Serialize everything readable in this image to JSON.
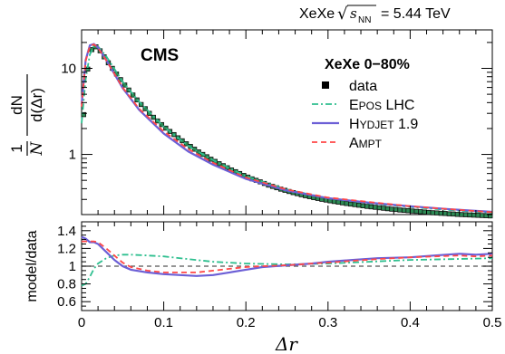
{
  "header": {
    "system": "XeXe",
    "sqrt_symbol": "√",
    "energy_symbol": "s",
    "energy_subscript": "NN",
    "energy_value": "= 5.44 TeV"
  },
  "experiment_label": "CMS",
  "centrality_label": "XeXe 0−80%",
  "chart_data": [
    {
      "type": "line",
      "panel": "top",
      "yscale": "log",
      "xlim": [
        0,
        0.5
      ],
      "ylim": [
        0.2,
        28
      ],
      "yticks": [
        1,
        10
      ],
      "ytick_labels": [
        "1",
        "10"
      ],
      "ylabel": {
        "numerator": "1",
        "denominator_N": "N",
        "fraction2_numerator": "dN",
        "fraction2_denominator": "d(Δr)"
      },
      "legend_position": "right",
      "series": [
        {
          "name": "data",
          "kind": "markers",
          "color": "#000000",
          "x": [
            0.0025,
            0.0075,
            0.0125,
            0.0175,
            0.0225,
            0.0275,
            0.0325,
            0.0375,
            0.0425,
            0.0475,
            0.0525,
            0.0575,
            0.0625,
            0.0675,
            0.0725,
            0.0775,
            0.0825,
            0.0875,
            0.0925,
            0.0975,
            0.1025,
            0.1075,
            0.1125,
            0.1175,
            0.1225,
            0.1275,
            0.1325,
            0.1375,
            0.1425,
            0.1475,
            0.1525,
            0.1575,
            0.1625,
            0.1675,
            0.1725,
            0.1775,
            0.1825,
            0.1875,
            0.1925,
            0.1975,
            0.2025,
            0.2075,
            0.2125,
            0.2175,
            0.2225,
            0.2275,
            0.2325,
            0.2375,
            0.2425,
            0.2475,
            0.2525,
            0.2575,
            0.2625,
            0.2675,
            0.2725,
            0.2775,
            0.2825,
            0.2875,
            0.2925,
            0.2975,
            0.3025,
            0.3075,
            0.3125,
            0.3175,
            0.3225,
            0.3275,
            0.3325,
            0.3375,
            0.3425,
            0.3475,
            0.3525,
            0.3575,
            0.3625,
            0.3675,
            0.3725,
            0.3775,
            0.3825,
            0.3875,
            0.3925,
            0.3975,
            0.4025,
            0.4075,
            0.4125,
            0.4175,
            0.4225,
            0.4275,
            0.4325,
            0.4375,
            0.4425,
            0.4475,
            0.4525,
            0.4575,
            0.4625,
            0.4675,
            0.4725,
            0.4775,
            0.4825,
            0.4875,
            0.4925,
            0.4975
          ],
          "y": [
            2.9,
            9.8,
            16.5,
            17.8,
            16.0,
            13.6,
            11.6,
            10.0,
            8.6,
            7.4,
            6.4,
            5.6,
            4.9,
            4.3,
            3.8,
            3.4,
            3.0,
            2.7,
            2.45,
            2.22,
            2.02,
            1.85,
            1.7,
            1.56,
            1.44,
            1.33,
            1.24,
            1.15,
            1.07,
            1.0,
            0.94,
            0.88,
            0.83,
            0.78,
            0.74,
            0.7,
            0.66,
            0.63,
            0.6,
            0.57,
            0.545,
            0.52,
            0.5,
            0.48,
            0.46,
            0.44,
            0.425,
            0.41,
            0.395,
            0.383,
            0.371,
            0.36,
            0.35,
            0.34,
            0.331,
            0.323,
            0.315,
            0.308,
            0.301,
            0.295,
            0.289,
            0.284,
            0.279,
            0.274,
            0.269,
            0.265,
            0.261,
            0.257,
            0.253,
            0.249,
            0.246,
            0.243,
            0.24,
            0.237,
            0.234,
            0.231,
            0.229,
            0.226,
            0.224,
            0.222,
            0.22,
            0.218,
            0.216,
            0.214,
            0.212,
            0.21,
            0.209,
            0.207,
            0.206,
            0.204,
            0.203,
            0.201,
            0.2,
            0.199,
            0.198,
            0.197,
            0.196,
            0.195,
            0.194,
            0.193
          ]
        },
        {
          "name": "EPOS LHC",
          "display": {
            "initial1": "E",
            "rest1": "POS",
            "suffix": " LHC"
          },
          "kind": "line",
          "dash": "dashdot",
          "color": "#2ebf8f",
          "x": [
            0.0,
            0.005,
            0.01,
            0.015,
            0.02,
            0.03,
            0.05,
            0.07,
            0.1,
            0.13,
            0.16,
            0.2,
            0.25,
            0.3,
            0.35,
            0.4,
            0.45,
            0.5
          ],
          "y": [
            2.3,
            7.5,
            14.5,
            18.2,
            18.0,
            13.8,
            7.0,
            4.1,
            2.1,
            1.25,
            0.86,
            0.56,
            0.39,
            0.31,
            0.27,
            0.245,
            0.225,
            0.21
          ]
        },
        {
          "name": "HYDJET 1.9",
          "display": {
            "initial1": "H",
            "rest1": "YDJET",
            "suffix": " 1.9"
          },
          "kind": "line",
          "dash": "solid",
          "color": "#6c5fd6",
          "x": [
            0.0,
            0.005,
            0.01,
            0.015,
            0.02,
            0.03,
            0.05,
            0.07,
            0.1,
            0.13,
            0.16,
            0.2,
            0.25,
            0.3,
            0.35,
            0.4,
            0.45,
            0.5
          ],
          "y": [
            3.8,
            12.5,
            18.5,
            19.2,
            17.5,
            12.5,
            5.9,
            3.3,
            1.75,
            1.08,
            0.76,
            0.52,
            0.38,
            0.31,
            0.275,
            0.25,
            0.23,
            0.215
          ]
        },
        {
          "name": "AMPT",
          "display": {
            "initial1": "A",
            "rest1": "MPT",
            "suffix": ""
          },
          "kind": "line",
          "dash": "dashed",
          "color": "#ff4747",
          "x": [
            0.0,
            0.005,
            0.01,
            0.015,
            0.02,
            0.03,
            0.05,
            0.07,
            0.1,
            0.13,
            0.16,
            0.2,
            0.25,
            0.3,
            0.35,
            0.4,
            0.45,
            0.5
          ],
          "y": [
            3.6,
            12.2,
            18.2,
            19.0,
            17.3,
            12.4,
            6.0,
            3.4,
            1.85,
            1.15,
            0.8,
            0.54,
            0.39,
            0.315,
            0.28,
            0.25,
            0.23,
            0.213
          ]
        }
      ]
    },
    {
      "type": "line",
      "panel": "bottom",
      "xlim": [
        0,
        0.5
      ],
      "ylim": [
        0.5,
        1.5
      ],
      "xticks": [
        0,
        0.1,
        0.2,
        0.3,
        0.4,
        0.5
      ],
      "xtick_labels": [
        "0",
        "0.1",
        "0.2",
        "0.3",
        "0.4",
        "0.5"
      ],
      "yticks": [
        0.6,
        0.8,
        1.0,
        1.2,
        1.4
      ],
      "ytick_labels": [
        "0.6",
        "0.8",
        "1",
        "1.2",
        "1.4"
      ],
      "xlabel": "Δr",
      "ylabel": "model/data",
      "reference_line": 1.0,
      "series": [
        {
          "name": "EPOS LHC",
          "color": "#2ebf8f",
          "dash": "dashdot",
          "x": [
            0.0,
            0.005,
            0.01,
            0.015,
            0.02,
            0.03,
            0.04,
            0.05,
            0.06,
            0.08,
            0.1,
            0.13,
            0.16,
            0.2,
            0.25,
            0.3,
            0.35,
            0.4,
            0.45,
            0.5
          ],
          "y": [
            0.78,
            0.8,
            0.88,
            0.97,
            1.03,
            1.09,
            1.12,
            1.13,
            1.13,
            1.12,
            1.11,
            1.08,
            1.05,
            1.03,
            1.02,
            1.03,
            1.05,
            1.07,
            1.08,
            1.09
          ]
        },
        {
          "name": "HYDJET 1.9",
          "color": "#6c5fd6",
          "dash": "solid",
          "x": [
            0.0,
            0.005,
            0.01,
            0.015,
            0.02,
            0.03,
            0.04,
            0.05,
            0.06,
            0.08,
            0.1,
            0.12,
            0.14,
            0.16,
            0.18,
            0.2,
            0.22,
            0.25,
            0.28,
            0.3,
            0.33,
            0.36,
            0.4,
            0.43,
            0.46,
            0.48,
            0.5
          ],
          "y": [
            1.33,
            1.31,
            1.27,
            1.27,
            1.25,
            1.16,
            1.07,
            1.0,
            0.96,
            0.93,
            0.91,
            0.9,
            0.89,
            0.9,
            0.93,
            0.96,
            0.99,
            1.01,
            1.03,
            1.05,
            1.07,
            1.09,
            1.1,
            1.12,
            1.14,
            1.13,
            1.14
          ]
        },
        {
          "name": "AMPT",
          "color": "#ff4747",
          "dash": "dashed",
          "x": [
            0.0,
            0.005,
            0.01,
            0.015,
            0.02,
            0.03,
            0.04,
            0.05,
            0.06,
            0.08,
            0.1,
            0.12,
            0.14,
            0.16,
            0.18,
            0.2,
            0.22,
            0.25,
            0.28,
            0.3,
            0.33,
            0.36,
            0.4,
            0.43,
            0.46,
            0.48,
            0.5
          ],
          "y": [
            1.28,
            1.28,
            1.28,
            1.28,
            1.27,
            1.2,
            1.12,
            1.04,
            0.99,
            0.95,
            0.93,
            0.93,
            0.93,
            0.95,
            0.97,
            0.99,
            1.0,
            1.01,
            1.03,
            1.04,
            1.06,
            1.08,
            1.1,
            1.11,
            1.12,
            1.11,
            1.12
          ]
        }
      ]
    }
  ]
}
